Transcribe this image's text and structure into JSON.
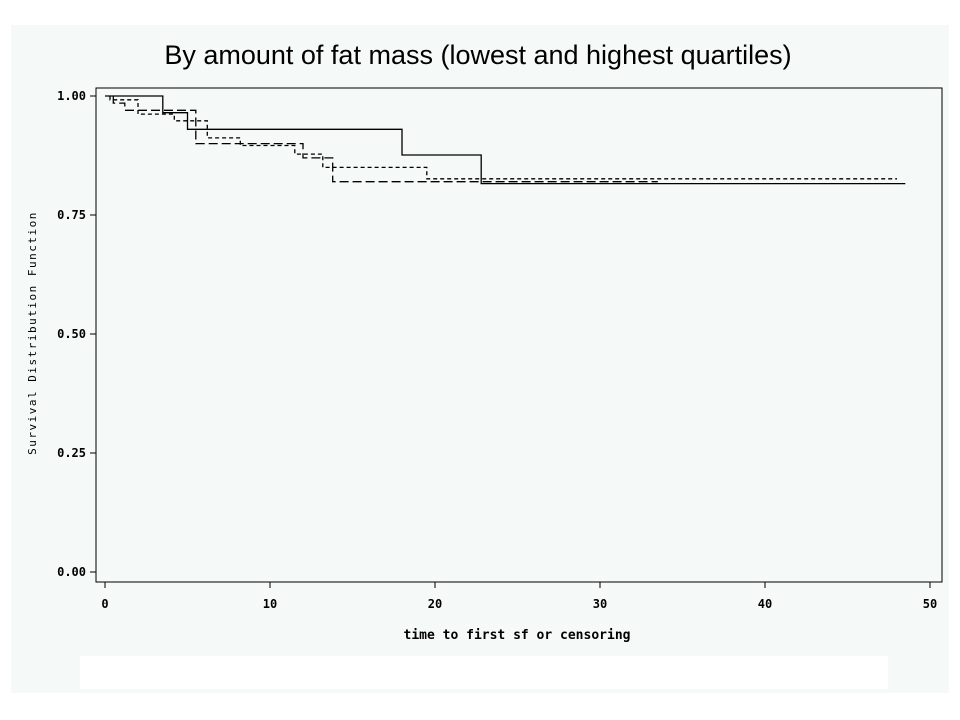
{
  "chart_data": {
    "type": "line",
    "title": "By amount of fat mass (lowest and highest quartiles)",
    "xlabel": "time to first sf or censoring",
    "ylabel": "Survival Distribution Function",
    "xlim": [
      0,
      50
    ],
    "ylim": [
      0,
      1
    ],
    "x_ticks": [
      "0",
      "10",
      "20",
      "30",
      "40",
      "50"
    ],
    "y_ticks": [
      "0.00",
      "0.25",
      "0.50",
      "0.75",
      "1.00"
    ],
    "grid": false,
    "legend": "none",
    "series": [
      {
        "line_style": "solid",
        "points": [
          [
            0,
            1.0
          ],
          [
            3.5,
            1.0
          ],
          [
            3.5,
            0.965
          ],
          [
            5.0,
            0.965
          ],
          [
            5.0,
            0.93
          ],
          [
            18.0,
            0.93
          ],
          [
            18.0,
            0.876
          ],
          [
            22.8,
            0.876
          ],
          [
            22.8,
            0.816
          ],
          [
            48.5,
            0.816
          ]
        ]
      },
      {
        "line_style": "dashed",
        "points": [
          [
            0.5,
            1.0
          ],
          [
            0.5,
            0.985
          ],
          [
            1.2,
            0.985
          ],
          [
            1.2,
            0.97
          ],
          [
            5.5,
            0.97
          ],
          [
            5.5,
            0.9
          ],
          [
            12.0,
            0.9
          ],
          [
            12.0,
            0.87
          ],
          [
            13.8,
            0.87
          ],
          [
            13.8,
            0.82
          ],
          [
            33.5,
            0.82
          ]
        ]
      },
      {
        "line_style": "short-dash",
        "points": [
          [
            0.3,
            1.0
          ],
          [
            0.3,
            0.992
          ],
          [
            2.0,
            0.992
          ],
          [
            2.0,
            0.962
          ],
          [
            4.2,
            0.962
          ],
          [
            4.2,
            0.948
          ],
          [
            6.2,
            0.948
          ],
          [
            6.2,
            0.912
          ],
          [
            8.2,
            0.912
          ],
          [
            8.2,
            0.896
          ],
          [
            11.5,
            0.896
          ],
          [
            11.5,
            0.878
          ],
          [
            13.2,
            0.878
          ],
          [
            13.2,
            0.85
          ],
          [
            19.5,
            0.85
          ],
          [
            19.5,
            0.826
          ],
          [
            48.0,
            0.826
          ]
        ]
      }
    ]
  }
}
